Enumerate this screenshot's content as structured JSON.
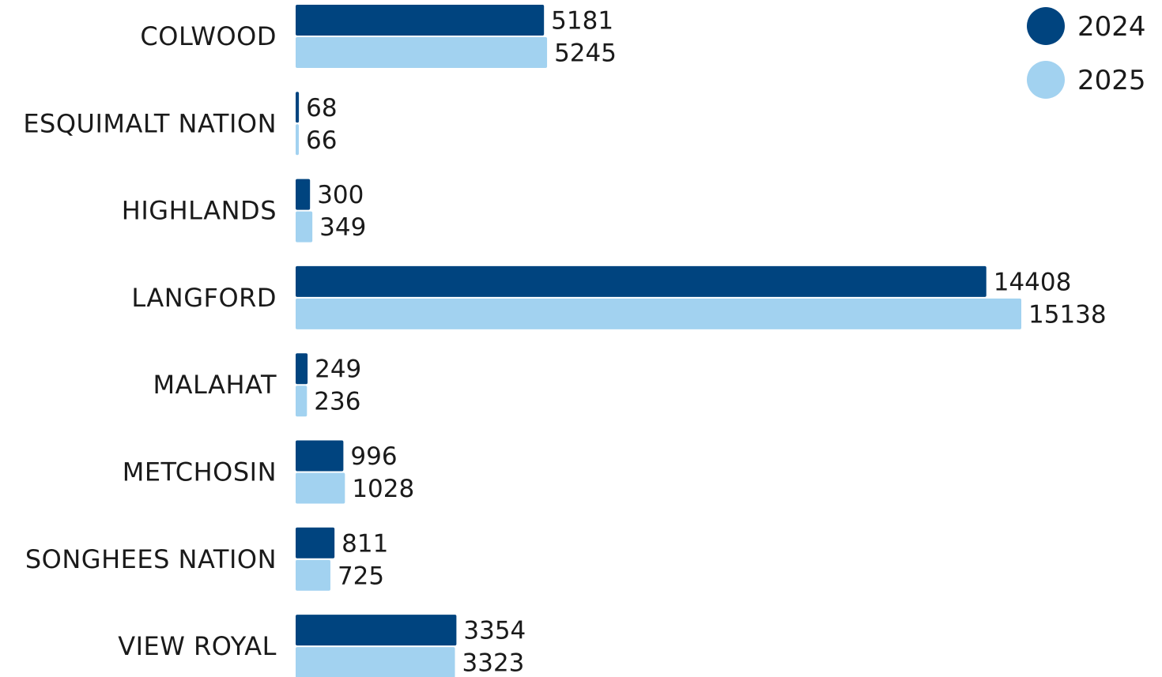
{
  "chart_data": {
    "type": "bar",
    "orientation": "horizontal",
    "categories": [
      "COLWOOD",
      "ESQUIMALT NATION",
      "HIGHLANDS",
      "LANGFORD",
      "MALAHAT",
      "METCHOSIN",
      "SONGHEES NATION",
      "VIEW ROYAL"
    ],
    "series": [
      {
        "name": "2024",
        "color": "#00447f",
        "values": [
          5181,
          68,
          300,
          14408,
          249,
          996,
          811,
          3354
        ]
      },
      {
        "name": "2025",
        "color": "#a2d2f0",
        "values": [
          5245,
          66,
          349,
          15138,
          236,
          1028,
          725,
          3323
        ]
      }
    ],
    "xlim": [
      0,
      15138
    ],
    "grid": false,
    "data_labels": true,
    "legend_position": "top-right"
  }
}
